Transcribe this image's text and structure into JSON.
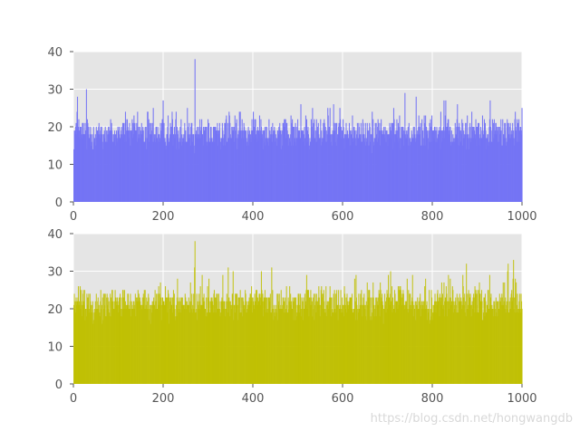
{
  "chart_data": [
    {
      "type": "bar",
      "series": [
        {
          "values_count": 1000,
          "color": "#7474f4"
        }
      ],
      "xlim": [
        0,
        1000
      ],
      "ylim": [
        0,
        40
      ],
      "xticks": [
        "0",
        "200",
        "400",
        "600",
        "800",
        "1000"
      ],
      "yticks": [
        "0",
        "10",
        "20",
        "30",
        "40"
      ],
      "grid": true,
      "background": "#e5e5e5",
      "bar_color": "#7474f4",
      "values_summary": {
        "typical_low": 12,
        "typical_high": 25,
        "max": 38,
        "max_at": 270
      }
    },
    {
      "type": "bar",
      "series": [
        {
          "values_count": 1000,
          "color": "#bfbf00"
        }
      ],
      "xlim": [
        0,
        1000
      ],
      "ylim": [
        0,
        40
      ],
      "xticks": [
        "0",
        "200",
        "400",
        "600",
        "800",
        "1000"
      ],
      "yticks": [
        "0",
        "10",
        "20",
        "30",
        "40"
      ],
      "grid": true,
      "background": "#e5e5e5",
      "bar_color": "#bfbf00",
      "values_summary": {
        "typical_low": 15,
        "typical_high": 28,
        "max": 38,
        "max_at": 270
      }
    }
  ],
  "watermark": "https://blog.csdn.net/hongwangdb"
}
